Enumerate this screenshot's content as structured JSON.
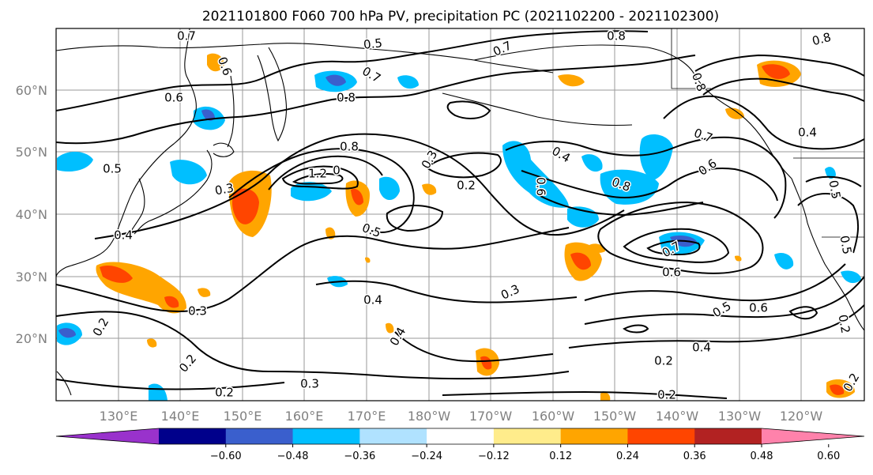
{
  "title": "2021101800 F060 700 hPa PV, precipitation PC (2021102200 - 2021102300)",
  "lat_labels": [
    "60°N",
    "50°N",
    "40°N",
    "30°N",
    "20°N"
  ],
  "lon_labels": [
    "130°E",
    "140°E",
    "150°E",
    "160°E",
    "170°E",
    "180°W",
    "170°W",
    "160°W",
    "150°W",
    "140°W",
    "130°W",
    "120°W"
  ],
  "colorbar": {
    "colors": [
      "#9932cc",
      "#00008b",
      "#3a5fcd",
      "#00bfff",
      "#b0e2ff",
      "#ffffff",
      "#ffec8b",
      "#ffa500",
      "#ff4500",
      "#b22222",
      "#ff82ab"
    ],
    "ticks": [
      "−0.60",
      "−0.48",
      "−0.36",
      "−0.24",
      "−0.12",
      "0.12",
      "0.24",
      "0.36",
      "0.48",
      "0.60"
    ]
  },
  "contour_labels": [
    {
      "text": "0.7"
    },
    {
      "text": "0.5"
    },
    {
      "text": "0.7"
    },
    {
      "text": "0.8"
    },
    {
      "text": "0.8"
    },
    {
      "text": "0.6"
    },
    {
      "text": "0.6"
    },
    {
      "text": "0.7"
    },
    {
      "text": "0.8"
    },
    {
      "text": "0.8"
    },
    {
      "text": "0.4"
    },
    {
      "text": "0.8"
    },
    {
      "text": "0.7"
    },
    {
      "text": "0.5"
    },
    {
      "text": "0.6"
    },
    {
      "text": "1.2"
    },
    {
      "text": "0"
    },
    {
      "text": "0.3"
    },
    {
      "text": "0.3"
    },
    {
      "text": "0.2"
    },
    {
      "text": "0.4"
    },
    {
      "text": "0.6"
    },
    {
      "text": "0.8"
    },
    {
      "text": "0.5"
    },
    {
      "text": "0.4"
    },
    {
      "text": "0.5"
    },
    {
      "text": "0.7"
    },
    {
      "text": "0.6"
    },
    {
      "text": "0.3"
    },
    {
      "text": "0.4"
    },
    {
      "text": "0.3"
    },
    {
      "text": "0.5"
    },
    {
      "text": "0.6"
    },
    {
      "text": "0.4"
    },
    {
      "text": "0.2"
    },
    {
      "text": "0.2"
    },
    {
      "text": "0.2"
    },
    {
      "text": "0.4"
    },
    {
      "text": "0.2"
    },
    {
      "text": "0.3"
    },
    {
      "text": "0.2"
    },
    {
      "text": "0.2"
    },
    {
      "text": "0.2"
    },
    {
      "text": "0.5"
    }
  ]
}
